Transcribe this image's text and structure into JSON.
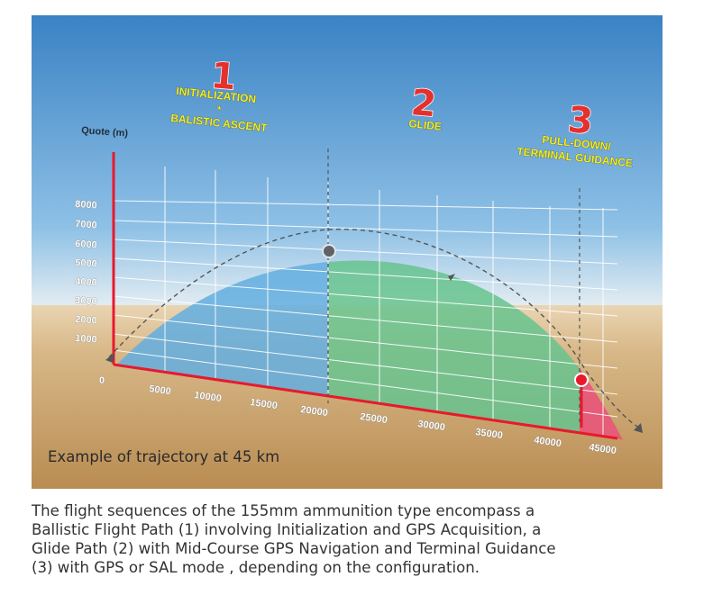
{
  "diagram": {
    "y_axis_label": "Quote (m)",
    "y_ticks": [
      "8000",
      "7000",
      "6000",
      "5000",
      "4000",
      "3000",
      "2000",
      "1000",
      "0"
    ],
    "x_ticks": [
      "5000",
      "10000",
      "15000",
      "20000",
      "25000",
      "30000",
      "35000",
      "40000",
      "45000"
    ],
    "phases": [
      {
        "number": "1",
        "label_lines": [
          "INITIALIZATION",
          "+",
          "BALISTIC ASCENT"
        ]
      },
      {
        "number": "2",
        "label_lines": [
          "GLIDE"
        ]
      },
      {
        "number": "3",
        "label_lines": [
          "PULL-DOWN/",
          "TERMINAL GUIDANCE"
        ]
      }
    ],
    "subtitle": "Example of trajectory at 45 km",
    "colors": {
      "sky_top": "#3d86c6",
      "ground": "#c39a62",
      "ascent_fill": "#63aee0",
      "glide_fill": "#67c38e",
      "terminal_fill": "#e8557a",
      "axis": "#e8192c",
      "phase_number": "#e5312d",
      "phase_label": "#f6ee1a"
    }
  },
  "caption": {
    "lines": [
      "The flight sequences of the 155mm ammunition type encompass a",
      "Ballistic Flight Path (1) involving Initialization and GPS Acquisition, a",
      "Glide Path (2) with Mid-Course GPS Navigation and Terminal Guidance",
      "(3) with GPS or SAL mode , depending on the configuration."
    ]
  }
}
